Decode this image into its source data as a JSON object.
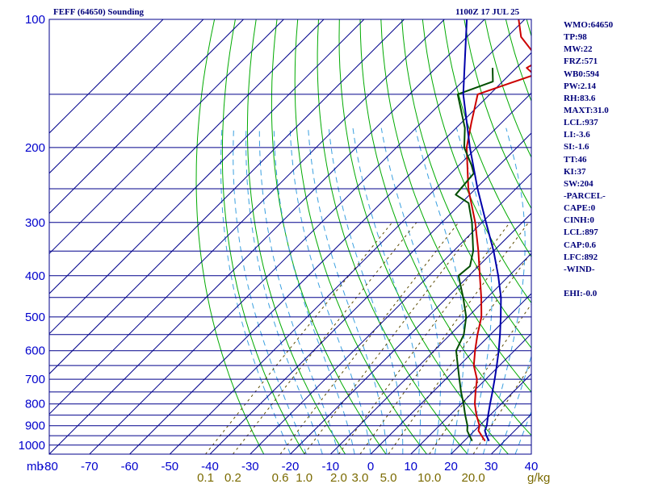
{
  "header": {
    "title": "FEFF (64650) Sounding",
    "datetime": "1100Z 17 JUL 25"
  },
  "stats": [
    "WMO:64650",
    "TP:98",
    "MW:22",
    "FRZ:571",
    "WB0:594",
    "PW:2.14",
    "RH:83.6",
    "MAXT:31.0",
    "LCL:937",
    "LI:-3.6",
    "SI:-1.6",
    "TT:46",
    "KI:37",
    "SW:204",
    "-PARCEL-",
    "CAPE:0",
    "CINH:0",
    "LCL:897",
    "CAP:0.6",
    "LFC:892",
    "-WIND-",
    "",
    "EHI:-0.0"
  ],
  "colors": {
    "frame": "#00008b",
    "isobar": "#00008b",
    "isotherm": "#00008b",
    "dry_adiabat": "#00aa00",
    "moist_adiabat": "#3aa0e0",
    "mixing_ratio": "#5a4a00",
    "temperature": "#cc0000",
    "dewpoint": "#004d00",
    "parcel": "#0000aa"
  },
  "chart_data": {
    "type": "line",
    "title": "",
    "xlabel": "",
    "ylabel": "",
    "y_unit_label": "mb",
    "x_unit_label": "g/kg",
    "y_scale": "log",
    "ylim": [
      1050,
      100
    ],
    "xlim_at_1050mb": [
      -80,
      40
    ],
    "y_ticks": [
      100,
      200,
      300,
      400,
      500,
      600,
      700,
      800,
      900,
      1000
    ],
    "x_ticks": [
      -80,
      -70,
      -60,
      -50,
      -40,
      -30,
      -20,
      -10,
      0,
      10,
      20,
      30,
      40
    ],
    "x_tick_labels": [
      "-80",
      "-70",
      "-60",
      "-50",
      "-40",
      "-30",
      "-20",
      "-10",
      "0",
      "10",
      "20",
      "30",
      "40"
    ],
    "mixing_ratio_labels": [
      "0.1",
      "0.2",
      "0.6",
      "1.0",
      "2.0",
      "3.0",
      "5.0",
      "10.0",
      "20.0"
    ],
    "grid": true,
    "series": [
      {
        "key": "temperature",
        "p": [
          978,
          950,
          925,
          900,
          850,
          800,
          750,
          700,
          650,
          600,
          550,
          500,
          450,
          400,
          350,
          300,
          250,
          200,
          175,
          150,
          135,
          130,
          125,
          110,
          100
        ],
        "t": [
          25.2,
          23.0,
          21.0,
          20.0,
          16.6,
          13.4,
          10.6,
          7.8,
          3.6,
          0.2,
          -3.2,
          -6.6,
          -11.5,
          -17.3,
          -23.8,
          -31.7,
          -41.8,
          -52.5,
          -57.5,
          -63.0,
          -53.8,
          -57.4,
          -56.0,
          -66.5,
          -71.5
        ]
      },
      {
        "key": "dewpoint",
        "p": [
          978,
          950,
          925,
          900,
          850,
          800,
          750,
          700,
          650,
          600,
          550,
          500,
          450,
          400,
          380,
          350,
          300,
          270,
          258,
          230,
          220,
          200,
          180,
          150,
          140,
          130
        ],
        "t": [
          22.0,
          20.0,
          18.2,
          17.0,
          13.8,
          10.6,
          7.0,
          3.4,
          -0.4,
          -4.5,
          -6.6,
          -10.4,
          -16.0,
          -22.6,
          -22.1,
          -25.1,
          -32.5,
          -38.2,
          -43.5,
          -44.3,
          -46.9,
          -53.1,
          -57.8,
          -68.0,
          -62.4,
          -65.9
        ]
      },
      {
        "key": "parcel",
        "p": [
          978,
          950,
          925,
          900,
          850,
          800,
          750,
          700,
          650,
          600,
          550,
          500,
          450,
          400,
          350,
          300,
          250,
          200,
          150,
          100
        ],
        "t": [
          26.2,
          24.2,
          22.6,
          21.8,
          19.5,
          17.2,
          14.8,
          12.2,
          9.3,
          6.1,
          2.4,
          -1.8,
          -6.6,
          -12.7,
          -20.0,
          -29.0,
          -39.5,
          -51.7,
          -66.6,
          -84.4
        ]
      }
    ]
  }
}
